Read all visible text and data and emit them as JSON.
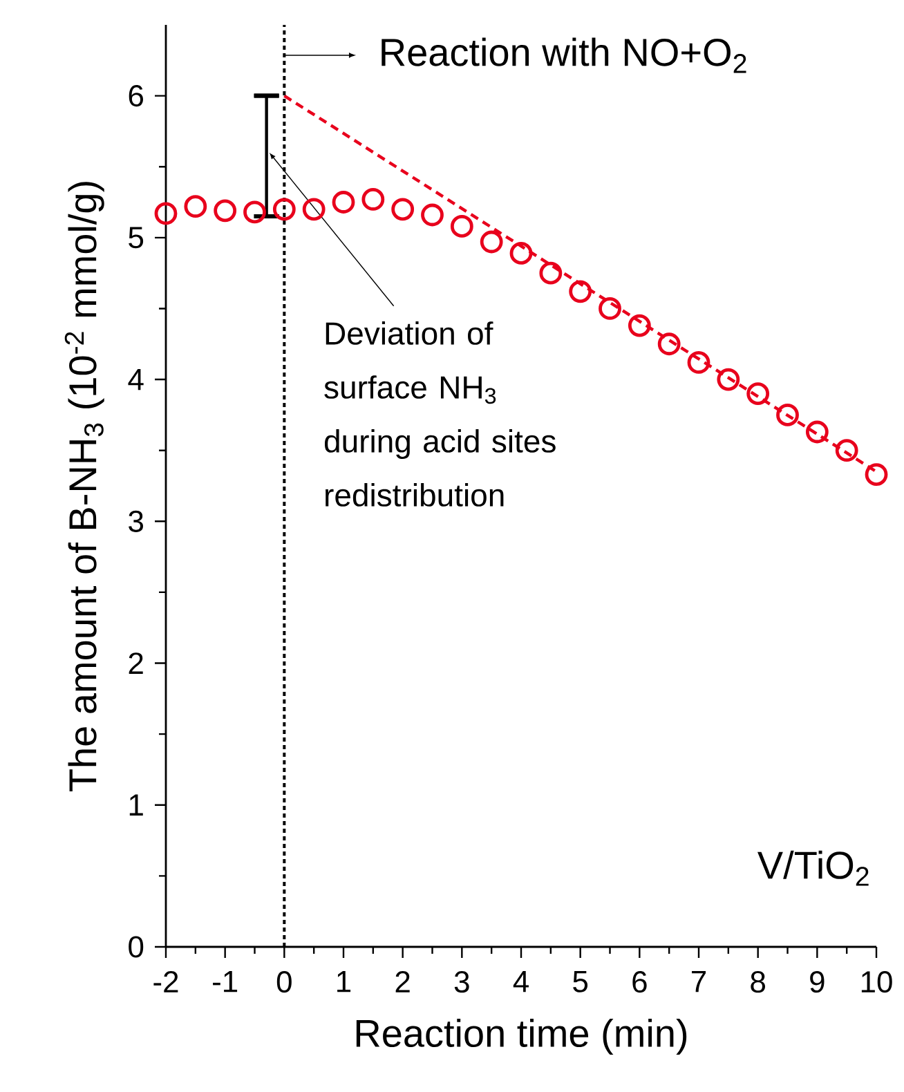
{
  "chart_data": {
    "type": "scatter",
    "xlabel": "Reaction time (min)",
    "ylabel": "The amount of B-NH$_{3}$ (10$^{-2}$ mmol/g)",
    "xlim": [
      -2,
      10
    ],
    "ylim": [
      0,
      6.5
    ],
    "xticks": [
      -2,
      -1,
      0,
      1,
      2,
      3,
      4,
      5,
      6,
      7,
      8,
      9,
      10
    ],
    "yticks": [
      0,
      1,
      2,
      3,
      4,
      5,
      6
    ],
    "series": [
      {
        "color": "#e8001c",
        "marker": "circle",
        "x": [
          -2,
          -1.5,
          -1,
          -0.5,
          0,
          0.5,
          1,
          1.5,
          2,
          2.5,
          3,
          3.5,
          4,
          4.5,
          5,
          5.5,
          6,
          6.5,
          7,
          7.5,
          8,
          8.5,
          9,
          9.5,
          10
        ],
        "values": [
          5.17,
          5.22,
          5.19,
          5.18,
          5.2,
          5.2,
          5.25,
          5.27,
          5.2,
          5.16,
          5.08,
          4.97,
          4.89,
          4.75,
          4.62,
          4.5,
          4.38,
          4.25,
          4.12,
          4.0,
          3.9,
          3.75,
          3.63,
          3.5,
          3.33
        ]
      },
      {
        "type": "line",
        "color": "#e8001c",
        "line_style": "dashed",
        "marker": "none",
        "x": [
          0,
          10
        ],
        "values": [
          6.0,
          3.35
        ]
      },
      {
        "type": "line",
        "color": "#000000",
        "line_style": "solid",
        "marker": "none",
        "x": [
          -0.3,
          -0.3
        ],
        "values": [
          5.15,
          6.0
        ],
        "errors": [
          [
            5.15,
            5.15
          ],
          [
            6.0,
            6.0
          ]
        ]
      }
    ],
    "ref_lines": [
      {
        "axis": "x",
        "value": 0,
        "label": "Reaction with NO+O$_{2}$",
        "color": "#000000",
        "line_style": "dotted"
      }
    ],
    "annotations": [
      {
        "text": "Deviation of surface NH$_{3}$ during acid sites redistribution",
        "x": -0.3,
        "y": 5.6
      },
      "V/TiO$_{2}$"
    ]
  }
}
